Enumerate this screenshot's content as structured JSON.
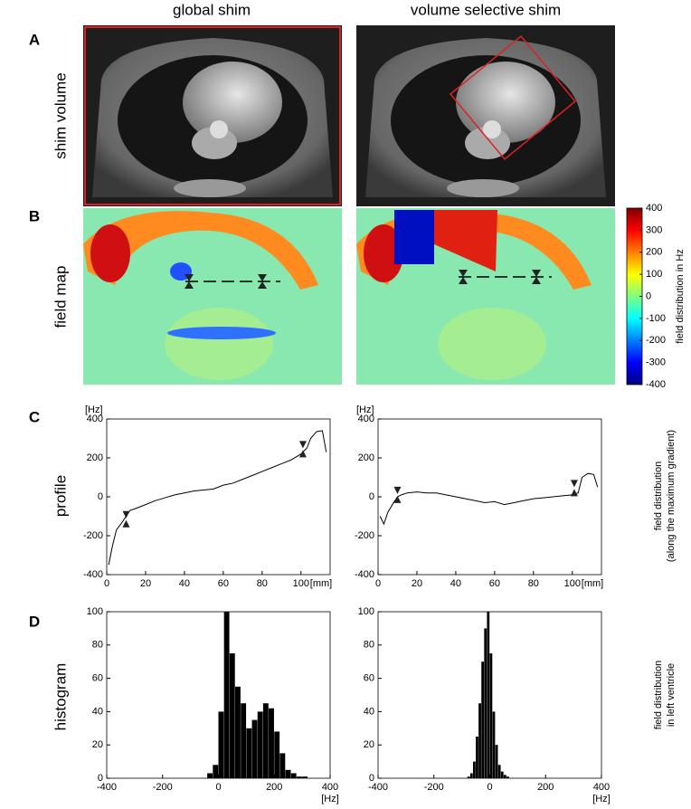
{
  "columns": [
    "global shim",
    "volume selective shim"
  ],
  "rows": [
    {
      "letter": "A",
      "label": "shim volume"
    },
    {
      "letter": "B",
      "label": "field map"
    },
    {
      "letter": "C",
      "label": "profile"
    },
    {
      "letter": "D",
      "label": "histogram"
    }
  ],
  "colorbar": {
    "label": "field distribution in Hz",
    "ylim": [
      -400,
      400
    ],
    "yticks": [
      400,
      300,
      200,
      100,
      0,
      -100,
      -200,
      -300,
      -400
    ]
  },
  "side_labels": {
    "profile": [
      "field distribution",
      "(along the maximum gradient)"
    ],
    "histogram": [
      "field distribution",
      "in left ventricle"
    ]
  },
  "chart_data": [
    {
      "type": "line",
      "y_unit": "[Hz]",
      "x_unit": "[mm]",
      "xlim": [
        0,
        115
      ],
      "ylim": [
        -400,
        400
      ],
      "xticks": [
        0,
        20,
        40,
        60,
        80,
        100
      ],
      "yticks": [
        -400,
        -200,
        0,
        200,
        400
      ],
      "color": "#000000",
      "x": [
        1,
        3,
        5,
        8,
        10,
        12,
        15,
        20,
        25,
        30,
        35,
        40,
        45,
        50,
        55,
        60,
        65,
        70,
        75,
        80,
        85,
        90,
        95,
        100,
        103,
        105,
        108,
        111,
        113
      ],
      "values": [
        -350,
        -250,
        -170,
        -130,
        -100,
        -70,
        -60,
        -40,
        -20,
        -5,
        10,
        20,
        30,
        35,
        40,
        60,
        70,
        90,
        110,
        130,
        150,
        170,
        190,
        220,
        250,
        300,
        335,
        340,
        230
      ],
      "markers": [
        {
          "x": 10,
          "y": -115
        },
        {
          "x": 101,
          "y": 245
        }
      ]
    },
    {
      "type": "line",
      "y_unit": "[Hz]",
      "x_unit": "[mm]",
      "xlim": [
        0,
        115
      ],
      "ylim": [
        -400,
        400
      ],
      "xticks": [
        0,
        20,
        40,
        60,
        80,
        100
      ],
      "yticks": [
        -400,
        -200,
        0,
        200,
        400
      ],
      "color": "#000000",
      "x": [
        1,
        3,
        5,
        8,
        10,
        12,
        15,
        20,
        25,
        30,
        35,
        40,
        45,
        50,
        55,
        60,
        65,
        70,
        75,
        80,
        85,
        90,
        95,
        100,
        103,
        105,
        108,
        111,
        113
      ],
      "values": [
        -100,
        -140,
        -80,
        -30,
        0,
        10,
        20,
        25,
        20,
        20,
        10,
        0,
        -10,
        -20,
        -30,
        -25,
        -40,
        -30,
        -20,
        -10,
        -5,
        0,
        5,
        10,
        20,
        100,
        120,
        115,
        50
      ],
      "markers": [
        {
          "x": 10,
          "y": 10
        },
        {
          "x": 101,
          "y": 45
        }
      ]
    },
    {
      "type": "histogram",
      "x_unit": "[Hz]",
      "xlim": [
        -400,
        400
      ],
      "ylim": [
        0,
        100
      ],
      "xticks": [
        -400,
        -200,
        0,
        200,
        400
      ],
      "yticks": [
        0,
        20,
        40,
        60,
        80,
        100
      ],
      "color": "#000000",
      "bins": [
        -40,
        -20,
        0,
        20,
        40,
        60,
        80,
        100,
        120,
        140,
        160,
        180,
        200,
        220,
        240,
        260,
        280,
        300,
        320
      ],
      "values": [
        3,
        8,
        40,
        100,
        75,
        55,
        45,
        30,
        35,
        40,
        45,
        42,
        28,
        15,
        5,
        3,
        1,
        1
      ]
    },
    {
      "type": "histogram",
      "x_unit": "[Hz]",
      "xlim": [
        -400,
        400
      ],
      "ylim": [
        0,
        100
      ],
      "xticks": [
        -400,
        -200,
        0,
        200,
        400
      ],
      "yticks": [
        0,
        20,
        40,
        60,
        80,
        100
      ],
      "color": "#000000",
      "bins": [
        -80,
        -70,
        -60,
        -50,
        -40,
        -30,
        -20,
        -10,
        0,
        10,
        20,
        30,
        40,
        50,
        60,
        70,
        80
      ],
      "values": [
        1,
        3,
        10,
        25,
        45,
        70,
        90,
        100,
        75,
        40,
        20,
        8,
        4,
        2,
        1,
        0
      ]
    }
  ]
}
